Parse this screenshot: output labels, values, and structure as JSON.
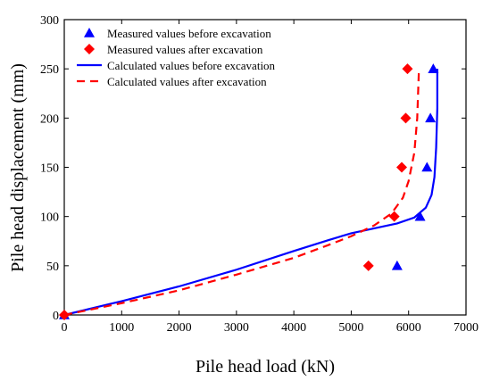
{
  "chart_data": {
    "type": "scatter",
    "title": "",
    "xlabel": "Pile head load (kN)",
    "ylabel": "Pile head displacement (mm)",
    "xlim": [
      0,
      7000
    ],
    "ylim": [
      0,
      300
    ],
    "xticks": [
      "0",
      "1000",
      "2000",
      "3000",
      "4000",
      "5000",
      "6000",
      "7000"
    ],
    "yticks": [
      "0",
      "50",
      "100",
      "150",
      "200",
      "250",
      "300"
    ],
    "grid": false,
    "legend_position": "top-left",
    "series": [
      {
        "name": "Measured values before excavation",
        "kind": "scatter",
        "marker": "triangle",
        "color": "#0000ff",
        "points": [
          [
            0,
            0
          ],
          [
            5800,
            50
          ],
          [
            6200,
            100
          ],
          [
            6320,
            150
          ],
          [
            6380,
            200
          ],
          [
            6430,
            250
          ]
        ]
      },
      {
        "name": "Measured values after excavation",
        "kind": "scatter",
        "marker": "diamond",
        "color": "#ff0000",
        "points": [
          [
            0,
            0
          ],
          [
            5300,
            50
          ],
          [
            5750,
            100
          ],
          [
            5880,
            150
          ],
          [
            5950,
            200
          ],
          [
            5980,
            250
          ]
        ]
      },
      {
        "name": "Calculated values before excavation",
        "kind": "line",
        "dash": "solid",
        "color": "#0000ff",
        "points": [
          [
            0,
            0
          ],
          [
            1000,
            14
          ],
          [
            2000,
            29
          ],
          [
            3000,
            46
          ],
          [
            4000,
            65
          ],
          [
            4600,
            76
          ],
          [
            5000,
            83
          ],
          [
            5400,
            88
          ],
          [
            5800,
            93
          ],
          [
            6100,
            99
          ],
          [
            6300,
            109
          ],
          [
            6400,
            122
          ],
          [
            6450,
            140
          ],
          [
            6480,
            170
          ],
          [
            6500,
            210
          ],
          [
            6500,
            250
          ]
        ]
      },
      {
        "name": "Calculated values after excavation",
        "kind": "line",
        "dash": "dashed",
        "color": "#ff0000",
        "points": [
          [
            0,
            0
          ],
          [
            1000,
            12
          ],
          [
            2000,
            25
          ],
          [
            3000,
            41
          ],
          [
            4000,
            58
          ],
          [
            4600,
            71
          ],
          [
            5000,
            80
          ],
          [
            5400,
            91
          ],
          [
            5700,
            103
          ],
          [
            5900,
            119
          ],
          [
            6000,
            136
          ],
          [
            6100,
            165
          ],
          [
            6150,
            200
          ],
          [
            6180,
            250
          ]
        ]
      }
    ]
  }
}
